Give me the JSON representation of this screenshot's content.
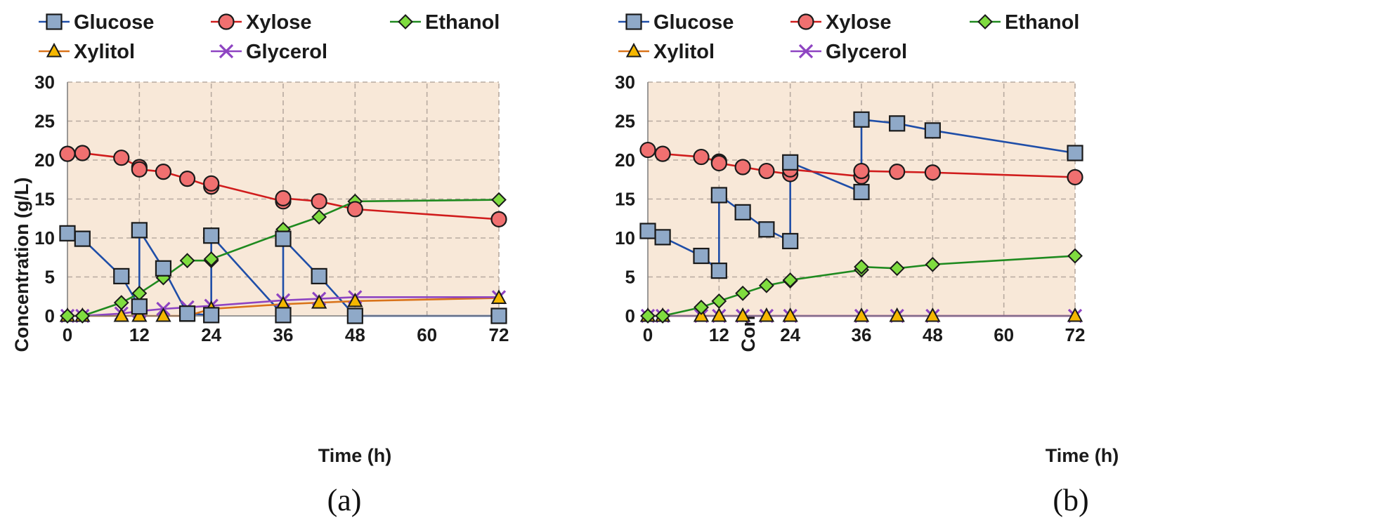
{
  "chart_data": [
    {
      "type": "line",
      "panel_label": "(a)",
      "panel_letter": "a",
      "xlabel": "Time (h)",
      "ylabel": "Concentration (g/L)",
      "xlim": [
        0,
        72
      ],
      "ylim": [
        0,
        30
      ],
      "xticks": [
        0,
        12,
        24,
        36,
        48,
        60,
        72
      ],
      "yticks": [
        0,
        5,
        10,
        15,
        20,
        25,
        30
      ],
      "grid": true,
      "legend_position": "top",
      "series": [
        {
          "name": "Glucose",
          "marker": "square",
          "color": "#1f4ea8",
          "marker_fill": "#8fa9c8",
          "points": [
            [
              0,
              10.6
            ],
            [
              2.5,
              9.9
            ],
            [
              9,
              5.1
            ],
            [
              12,
              1.2
            ],
            [
              12,
              11.0
            ],
            [
              16,
              6.1
            ],
            [
              20,
              0.3
            ],
            [
              24,
              0.1
            ],
            [
              24,
              10.3
            ],
            [
              36,
              0.1
            ],
            [
              36,
              9.9
            ],
            [
              42,
              5.1
            ],
            [
              48,
              0.0
            ],
            [
              72,
              0.0
            ]
          ]
        },
        {
          "name": "Xylose",
          "marker": "circle",
          "color": "#d01c1c",
          "marker_fill": "#f07070",
          "points": [
            [
              0,
              20.8
            ],
            [
              2.5,
              20.9
            ],
            [
              9,
              20.3
            ],
            [
              12,
              19.1
            ],
            [
              12,
              18.8
            ],
            [
              16,
              18.5
            ],
            [
              20,
              17.6
            ],
            [
              24,
              16.6
            ],
            [
              24,
              17.0
            ],
            [
              36,
              14.7
            ],
            [
              36,
              15.1
            ],
            [
              42,
              14.7
            ],
            [
              48,
              13.7
            ],
            [
              72,
              12.4
            ]
          ]
        },
        {
          "name": "Ethanol",
          "marker": "diamond",
          "color": "#1f8a1f",
          "marker_fill": "#7fdc3f",
          "points": [
            [
              0,
              0.0
            ],
            [
              2.5,
              0.0
            ],
            [
              9,
              1.7
            ],
            [
              12,
              2.9
            ],
            [
              16,
              4.9
            ],
            [
              20,
              7.1
            ],
            [
              24,
              7.1
            ],
            [
              24,
              7.3
            ],
            [
              36,
              10.7
            ],
            [
              36,
              11.1
            ],
            [
              42,
              12.7
            ],
            [
              48,
              14.7
            ],
            [
              72,
              14.9
            ]
          ]
        },
        {
          "name": "Xylitol",
          "marker": "triangle",
          "color": "#d9731a",
          "marker_fill": "#f5b700",
          "points": [
            [
              0,
              0.0
            ],
            [
              2.5,
              0.0
            ],
            [
              9,
              0.0
            ],
            [
              12,
              0.0
            ],
            [
              16,
              0.0
            ],
            [
              20,
              0.0
            ],
            [
              24,
              0.9
            ],
            [
              36,
              1.5
            ],
            [
              42,
              1.7
            ],
            [
              48,
              1.9
            ],
            [
              72,
              2.3
            ]
          ]
        },
        {
          "name": "Glycerol",
          "marker": "x",
          "color": "#8e44c2",
          "marker_fill": "#8e44c2",
          "points": [
            [
              0,
              0.0
            ],
            [
              2.5,
              0.0
            ],
            [
              9,
              0.3
            ],
            [
              12,
              0.6
            ],
            [
              16,
              0.9
            ],
            [
              20,
              1.1
            ],
            [
              24,
              1.3
            ],
            [
              36,
              2.0
            ],
            [
              42,
              2.2
            ],
            [
              48,
              2.4
            ],
            [
              72,
              2.4
            ]
          ]
        }
      ]
    },
    {
      "type": "line",
      "panel_label": "(b)",
      "panel_letter": "b",
      "xlabel": "Time (h)",
      "ylabel": "Concentration (g/L)",
      "xlim": [
        0,
        72
      ],
      "ylim": [
        0,
        30
      ],
      "xticks": [
        0,
        12,
        24,
        36,
        48,
        60,
        72
      ],
      "yticks": [
        0,
        5,
        10,
        15,
        20,
        25,
        30
      ],
      "grid": true,
      "legend_position": "top",
      "series": [
        {
          "name": "Glucose",
          "marker": "square",
          "color": "#1f4ea8",
          "marker_fill": "#8fa9c8",
          "points": [
            [
              0,
              10.9
            ],
            [
              2.5,
              10.1
            ],
            [
              9,
              7.7
            ],
            [
              12,
              5.8
            ],
            [
              12,
              15.5
            ],
            [
              16,
              13.3
            ],
            [
              20,
              11.1
            ],
            [
              24,
              9.6
            ],
            [
              24,
              19.7
            ],
            [
              36,
              15.9
            ],
            [
              36,
              25.2
            ],
            [
              42,
              24.7
            ],
            [
              48,
              23.8
            ],
            [
              72,
              20.9
            ]
          ]
        },
        {
          "name": "Xylose",
          "marker": "circle",
          "color": "#d01c1c",
          "marker_fill": "#f07070",
          "points": [
            [
              0,
              21.3
            ],
            [
              2.5,
              20.8
            ],
            [
              9,
              20.4
            ],
            [
              12,
              19.8
            ],
            [
              12,
              19.6
            ],
            [
              16,
              19.1
            ],
            [
              20,
              18.6
            ],
            [
              24,
              18.2
            ],
            [
              24,
              18.8
            ],
            [
              36,
              17.9
            ],
            [
              36,
              18.6
            ],
            [
              42,
              18.5
            ],
            [
              48,
              18.4
            ],
            [
              72,
              17.8
            ]
          ]
        },
        {
          "name": "Ethanol",
          "marker": "diamond",
          "color": "#1f8a1f",
          "marker_fill": "#7fdc3f",
          "points": [
            [
              0,
              0.0
            ],
            [
              2.5,
              0.0
            ],
            [
              9,
              1.1
            ],
            [
              12,
              1.9
            ],
            [
              16,
              2.9
            ],
            [
              20,
              3.9
            ],
            [
              24,
              4.5
            ],
            [
              24,
              4.6
            ],
            [
              36,
              5.9
            ],
            [
              36,
              6.3
            ],
            [
              42,
              6.1
            ],
            [
              48,
              6.6
            ],
            [
              72,
              7.7
            ]
          ]
        },
        {
          "name": "Xylitol",
          "marker": "triangle",
          "color": "#d9731a",
          "marker_fill": "#f5b700",
          "points": [
            [
              0,
              0.0
            ],
            [
              2.5,
              0.0
            ],
            [
              9,
              0.0
            ],
            [
              12,
              0.0
            ],
            [
              16,
              0.0
            ],
            [
              20,
              0.0
            ],
            [
              24,
              0.0
            ],
            [
              36,
              0.0
            ],
            [
              42,
              0.0
            ],
            [
              48,
              0.0
            ],
            [
              72,
              0.0
            ]
          ]
        },
        {
          "name": "Glycerol",
          "marker": "x",
          "color": "#8e44c2",
          "marker_fill": "#8e44c2",
          "points": [
            [
              0,
              0.0
            ],
            [
              2.5,
              0.0
            ],
            [
              9,
              0.0
            ],
            [
              12,
              0.0
            ],
            [
              16,
              0.0
            ],
            [
              20,
              0.0
            ],
            [
              24,
              0.0
            ],
            [
              36,
              0.0
            ],
            [
              42,
              0.0
            ],
            [
              48,
              0.0
            ],
            [
              72,
              0.0
            ]
          ]
        }
      ]
    }
  ],
  "colors": {
    "plot_background": "#f8e8d8",
    "grid": "#b7aaa0",
    "marker_stroke": "#1a1a1a"
  }
}
